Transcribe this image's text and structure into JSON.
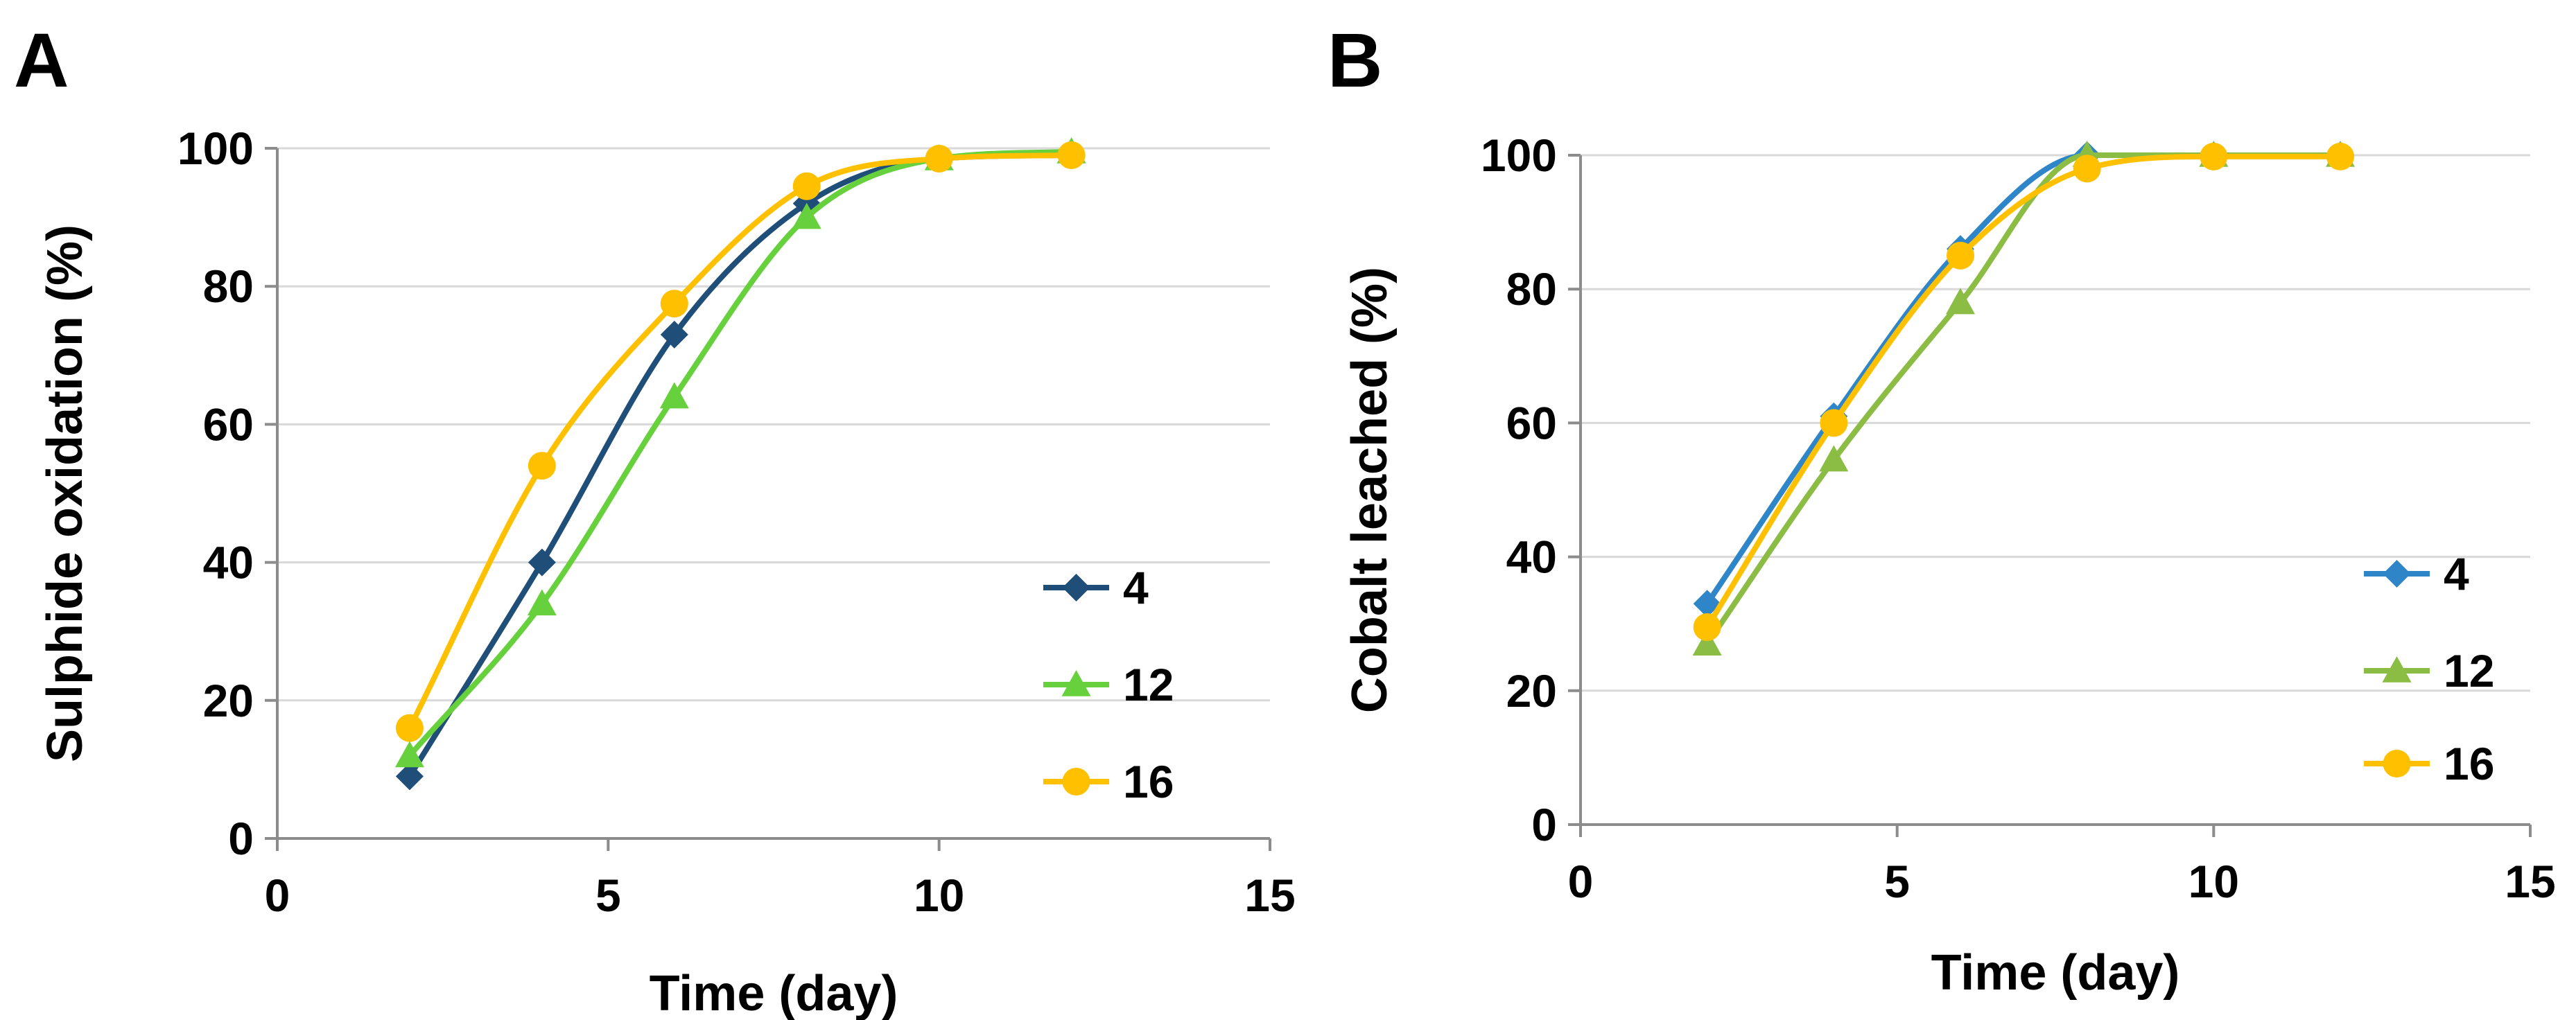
{
  "chart_data": [
    {
      "type": "line",
      "panel_label": "A",
      "xlabel": "Time (day)",
      "ylabel": "Sulphide oxidation (%)",
      "xlim": [
        0,
        15
      ],
      "ylim": [
        0,
        100
      ],
      "xticks": [
        "0",
        "5",
        "10",
        "15"
      ],
      "yticks": [
        "0",
        "20",
        "40",
        "60",
        "80",
        "100"
      ],
      "grid": "horizontal",
      "legend_position": "right",
      "x": [
        2,
        4,
        6,
        8,
        10,
        12
      ],
      "series": [
        {
          "name": "4",
          "marker": "diamond",
          "color": "#1f4e79",
          "values": [
            9,
            40,
            73,
            92,
            98.5,
            99
          ]
        },
        {
          "name": "12",
          "marker": "triangle",
          "color": "#66d13c",
          "values": [
            12,
            34,
            64,
            90,
            98.5,
            99.5
          ]
        },
        {
          "name": "16",
          "marker": "circle",
          "color": "#ffc000",
          "values": [
            16,
            54,
            77.5,
            94.5,
            98.5,
            99
          ]
        }
      ]
    },
    {
      "type": "line",
      "panel_label": "B",
      "xlabel": "Time (day)",
      "ylabel": "Cobalt leached (%)",
      "xlim": [
        0,
        15
      ],
      "ylim": [
        0,
        100
      ],
      "xticks": [
        "0",
        "5",
        "10",
        "15"
      ],
      "yticks": [
        "0",
        "20",
        "40",
        "60",
        "80",
        "100"
      ],
      "grid": "horizontal",
      "legend_position": "right",
      "x": [
        2,
        4,
        6,
        8,
        10,
        12
      ],
      "series": [
        {
          "name": "4",
          "marker": "diamond",
          "color": "#2e86c8",
          "values": [
            33,
            61,
            86,
            100,
            100,
            100
          ]
        },
        {
          "name": "12",
          "marker": "triangle",
          "color": "#8bbd44",
          "values": [
            27,
            54.5,
            78,
            100,
            100,
            100
          ]
        },
        {
          "name": "16",
          "marker": "circle",
          "color": "#ffc000",
          "values": [
            29.5,
            60,
            85,
            98,
            99.8,
            99.8
          ]
        }
      ]
    }
  ]
}
